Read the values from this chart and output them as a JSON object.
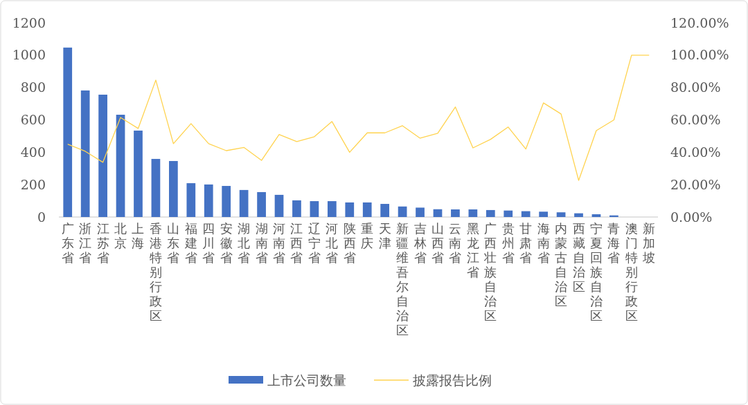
{
  "chart_data": {
    "type": "bar",
    "categories": [
      "广东省",
      "浙江省",
      "江苏省",
      "北京",
      "上海",
      "香港特别行政区",
      "山东省",
      "福建省",
      "四川省",
      "安徽省",
      "湖北省",
      "湖南省",
      "河南省",
      "江西省",
      "辽宁省",
      "河北省",
      "陕西省",
      "重庆",
      "天津",
      "新疆维吾尔自治区",
      "吉林省",
      "山西省",
      "云南省",
      "黑龙江省",
      "广西壮族自治区",
      "贵州省",
      "甘肃省",
      "海南省",
      "内蒙古自治区",
      "西藏自治区",
      "宁夏回族自治区",
      "青海省",
      "澳门特别行政区",
      "新加坡"
    ],
    "series": [
      {
        "name": "上市公司数量",
        "color": "#4472c4",
        "values": [
          1047,
          782,
          756,
          632,
          534,
          359,
          346,
          209,
          201,
          192,
          167,
          154,
          137,
          103,
          98,
          98,
          90,
          90,
          81,
          65,
          58,
          48,
          47,
          47,
          43,
          40,
          36,
          33,
          29,
          23,
          17,
          10,
          null,
          null
        ]
      },
      {
        "name": "披露报告比例",
        "type": "line",
        "axis": "y2",
        "color": "#ffd34f",
        "values": [
          45,
          40.6,
          33.8,
          61.5,
          54.7,
          84.6,
          45.3,
          57.7,
          45.3,
          41,
          43,
          35,
          51,
          46.6,
          49.6,
          59,
          40,
          52,
          52,
          56.4,
          48.7,
          51.7,
          68,
          42.7,
          48,
          55.6,
          42,
          70.5,
          63.7,
          22.6,
          53.4,
          60,
          100,
          100
        ]
      }
    ],
    "ylim": [
      0,
      1200
    ],
    "yticks": [
      0,
      200,
      400,
      600,
      800,
      1000,
      1200
    ],
    "y2lim": [
      0,
      120
    ],
    "y2ticks": [
      {
        "value": 0,
        "label": "0.00%"
      },
      {
        "value": 20,
        "label": "20.00%"
      },
      {
        "value": 40,
        "label": "40.00%"
      },
      {
        "value": 60,
        "label": "60.00%"
      },
      {
        "value": 80,
        "label": "80.00%"
      },
      {
        "value": 100,
        "label": "100.00%"
      },
      {
        "value": 120,
        "label": "120.00%"
      }
    ],
    "legend": "bottom",
    "grid": false,
    "marker": "none"
  }
}
